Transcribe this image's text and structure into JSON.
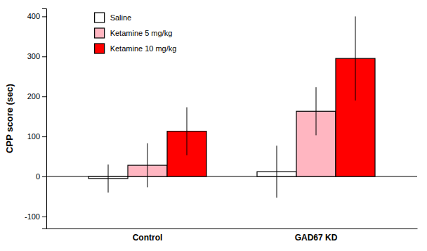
{
  "chart_data": {
    "type": "bar",
    "categories": [
      "Control",
      "GAD67 KD"
    ],
    "series": [
      {
        "name": "Saline",
        "color": "#FFFFFF",
        "values": [
          -5,
          12
        ],
        "errors": [
          35,
          65
        ]
      },
      {
        "name": "Ketamine 5 mg/kg",
        "color": "#FFB6C1",
        "values": [
          28,
          163
        ],
        "errors": [
          55,
          60
        ]
      },
      {
        "name": "Ketamine 10 mg/kg",
        "color": "#FF0000",
        "values": [
          113,
          295
        ],
        "errors": [
          60,
          105
        ]
      }
    ],
    "ylabel": "CPP score (sec)",
    "ylim": [
      -130,
      420
    ],
    "yticks": [
      -100,
      0,
      100,
      200,
      300,
      400
    ],
    "legend": "upper left"
  }
}
